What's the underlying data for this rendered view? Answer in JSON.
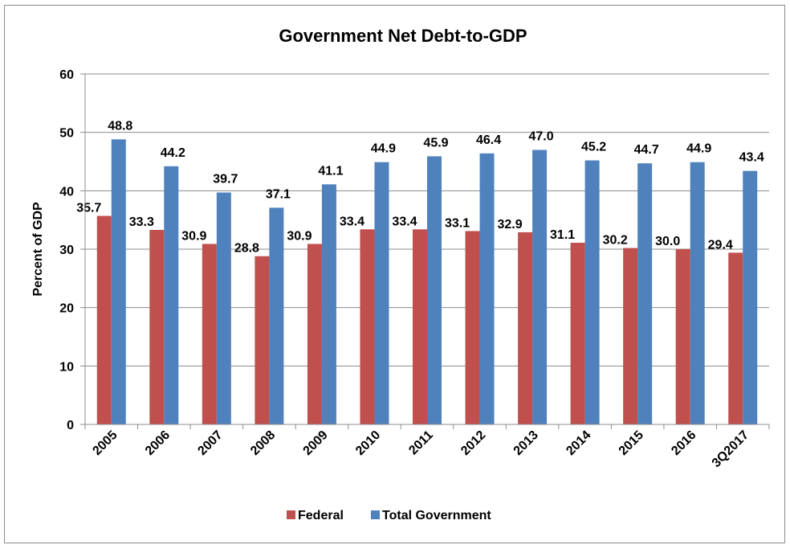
{
  "chart_data": {
    "type": "bar",
    "title": "Government Net Debt-to-GDP",
    "ylabel": "Percent of GDP",
    "xlabel": "",
    "ylim": [
      0,
      60
    ],
    "yticks": [
      0,
      10,
      20,
      30,
      40,
      50,
      60
    ],
    "grid": true,
    "legend_position": "bottom",
    "categories": [
      "2005",
      "2006",
      "2007",
      "2008",
      "2009",
      "2010",
      "2011",
      "2012",
      "2013",
      "2014",
      "2015",
      "2016",
      "3Q2017"
    ],
    "series": [
      {
        "name": "Federal",
        "color": "#c0504d",
        "values": [
          35.7,
          33.3,
          30.9,
          28.8,
          30.9,
          33.4,
          33.4,
          33.1,
          32.9,
          31.1,
          30.2,
          30.0,
          29.4
        ],
        "labels": [
          "35.7",
          "33.3",
          "30.9",
          "28.8",
          "30.9",
          "33.4",
          "33.4",
          "33.1",
          "32.9",
          "31.1",
          "30.2",
          "30.0",
          "29.4"
        ]
      },
      {
        "name": "Total Government",
        "color": "#4f81bd",
        "values": [
          48.8,
          44.2,
          39.7,
          37.1,
          41.1,
          44.9,
          45.9,
          46.4,
          47.0,
          45.2,
          44.7,
          44.9,
          43.4
        ],
        "labels": [
          "48.8",
          "44.2",
          "39.7",
          "37.1",
          "41.1",
          "44.9",
          "45.9",
          "46.4",
          "47.0",
          "45.2",
          "44.7",
          "44.9",
          "43.4"
        ]
      }
    ]
  }
}
